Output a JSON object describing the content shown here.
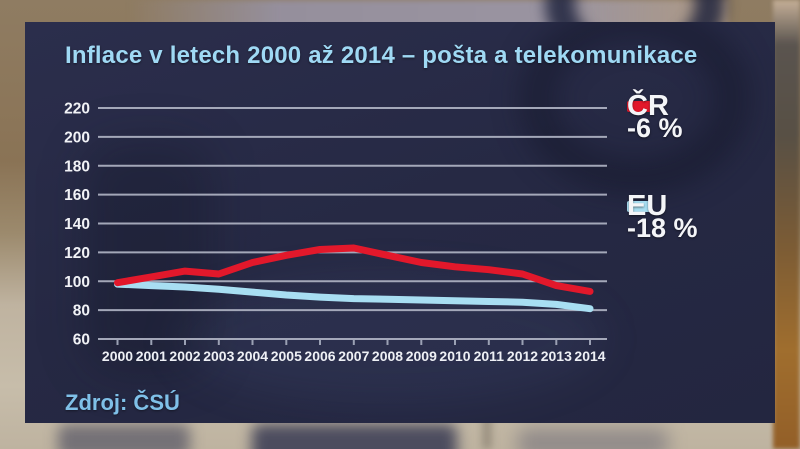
{
  "header": {
    "title": "Inflace v letech 2000 až 2014 – pošta a telekomunikace"
  },
  "source": {
    "label": "Zdroj: ČSÚ"
  },
  "colors": {
    "panel_background": "#262944",
    "title_text": "#9fd9f4",
    "axis_text": "#f1f2f6",
    "gridline": "#b2b6c6",
    "cr_line": "#e2182b",
    "eu_line": "#a8def2",
    "source_text": "#7fc0e8"
  },
  "legend": [
    {
      "name": "ČR",
      "change": "-6 %",
      "color": "#e2182b"
    },
    {
      "name": "EU",
      "change": "-18 %",
      "color": "#a8def2"
    }
  ],
  "chart_data": {
    "type": "line",
    "title": "Inflace v letech 2000 až 2014 – pošta a telekomunikace",
    "x": [
      2000,
      2001,
      2002,
      2003,
      2004,
      2005,
      2006,
      2007,
      2008,
      2009,
      2010,
      2011,
      2012,
      2013,
      2014
    ],
    "series": [
      {
        "name": "ČR",
        "color": "#e2182b",
        "values": [
          99,
          103,
          107,
          105,
          113,
          118,
          122,
          123,
          118,
          113,
          110,
          108,
          105,
          97,
          93
        ]
      },
      {
        "name": "EU",
        "color": "#a8def2",
        "values": [
          98,
          97,
          96,
          94.5,
          92.5,
          90.5,
          89,
          88,
          87.5,
          87,
          86.5,
          86,
          85.5,
          84,
          81
        ]
      }
    ],
    "xlabel": "",
    "ylabel": "",
    "ylim": [
      60,
      220
    ],
    "ytick_step": 20,
    "grid": true,
    "legend_position": "right",
    "annotations": [
      "ČR -6 %",
      "EU -18 %"
    ]
  }
}
